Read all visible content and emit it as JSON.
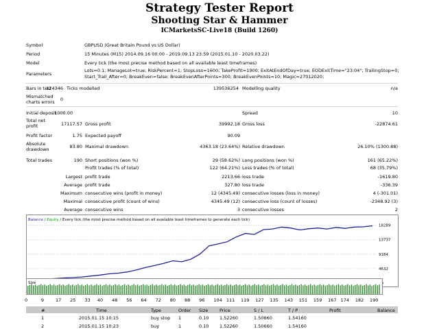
{
  "header": {
    "title": "Strategy Tester Report",
    "subtitle": "Shooting Star & Hammer",
    "server": "ICMarketsSC-Live18 (Build 1260)"
  },
  "info": {
    "symbol_label": "Symbol",
    "symbol": "GBPUSD (Great Britain Pound vs US Dollar)",
    "period_label": "Period",
    "period": "15 Minutes (M15) 2014.09.16 00:00 - 2019.09.13 23:59 (2015.01.10 - 2020.03.22)",
    "model_label": "Model",
    "model": "Every tick (the most precise method based on all available least timeframes)",
    "params_label": "Parameters",
    "params_line1": "Lots=0.1; ManageLot=true; RiskPercent=1; StopLoss=1600; TakeProfit=1900; ExitAtEndOfDay=true; EODExitTime=\"23:04\"; TrailingStop=0;",
    "params_line2": "Start_Trail_After=0; BreakEven=false; BreakEvenAfterPoints=300; BreakEvenPoints=10; Magic=27012020;"
  },
  "bars": {
    "bars_label": "Bars in test",
    "bars": "124346",
    "ticks_label": "Ticks modelled",
    "ticks": "139536254",
    "quality_label": "Modelling quality",
    "quality": "n/a",
    "mismatch_label1": "Mismatched",
    "mismatch_label2": "charts errors",
    "mismatch": "0"
  },
  "results": {
    "deposit_label": "Initial deposit",
    "deposit": "1000.00",
    "spread_label": "Spread",
    "spread": "10",
    "netprofit_label1": "Total net",
    "netprofit_label2": "profit",
    "netprofit": "17117.57",
    "grossprofit_label": "Gross profit",
    "grossprofit": "39992.18",
    "grossloss_label": "Gross loss",
    "grossloss": "-22874.61",
    "pf_label": "Profit factor",
    "pf": "1.75",
    "payoff_label": "Expected payoff",
    "payoff": "90.09",
    "absdd_label1": "Absolute",
    "absdd_label2": "drawdown",
    "absdd": "83.80",
    "maxdd_label": "Maximal drawdown",
    "maxdd": "4363.18 (23.64%)",
    "reldd_label": "Relative drawdown",
    "reldd": "26.10% (1300.88)",
    "trades_label": "Total trades",
    "trades": "190",
    "short_label": "Short positions (won %)",
    "short": "29 (58.62%)",
    "long_label": "Long positions (won %)",
    "long": "161 (65.22%)",
    "ptrades_label": "Profit trades (% of total)",
    "ptrades": "122 (64.21%)",
    "ltrades_label": "Loss trades (% of total)",
    "ltrades": "68 (35.79%)",
    "largest_label": "Largest",
    "lpt_label": "profit trade",
    "lpt": "2213.66",
    "llt_label": "loss trade",
    "llt": "-1619.80",
    "average_label": "Average",
    "apt_label": "profit trade",
    "apt": "327.80",
    "alt_label": "loss trade",
    "alt": "-336.39",
    "maximum_label": "Maximum",
    "mcw_label": "consecutive wins (profit in money)",
    "mcw": "12 (4345.49)",
    "mcl_label": "consecutive losses (loss in money)",
    "mcl": "4 (-301.01)",
    "maximal_label": "Maximal",
    "mcp_label": "consecutive profit (count of wins)",
    "mcp": "4345.49 (12)",
    "mcll_label": "consecutive loss (count of losses)",
    "mcll": "-2348.92 (3)",
    "average2_label": "Average",
    "acw_label": "consecutive wins",
    "acw": "3",
    "acl_label": "consecutive losses",
    "acl": "2"
  },
  "chart": {
    "legend_balance": "Balance",
    "legend_sep": " / ",
    "legend_equity": "Equity",
    "legend_rest": " / Every tick (the most precise method based on all available least timeframes to generate each tick)",
    "size_label": "Size",
    "balance_color": "#1f1f9c",
    "volume_color": "#2e8b2e"
  },
  "chart_data": {
    "type": "line",
    "title": "",
    "ylabel": "",
    "xlabel": "",
    "y_ticks": [
      "18289",
      "13737",
      "9184",
      "4632",
      "79"
    ],
    "x_ticks": [
      "0",
      "9",
      "17",
      "25",
      "33",
      "40",
      "48",
      "56",
      "64",
      "72",
      "80",
      "88",
      "96",
      "104",
      "111",
      "119",
      "127",
      "135",
      "143",
      "151",
      "159",
      "167",
      "174",
      "182",
      "190"
    ],
    "ylim": [
      79,
      19500
    ],
    "xlim": [
      0,
      190
    ],
    "series": [
      {
        "x": [
          0,
          5,
          10,
          15,
          20,
          25,
          30,
          35,
          40,
          45,
          50,
          55,
          60,
          65,
          70,
          75,
          80,
          85,
          90,
          95,
          100,
          105,
          110,
          115,
          120,
          125,
          130,
          135,
          140,
          145,
          150,
          155,
          160,
          165,
          170,
          175,
          180,
          185,
          190
        ],
        "y": [
          1000,
          1200,
          1300,
          1500,
          1700,
          1800,
          2000,
          2300,
          2600,
          3000,
          3200,
          3600,
          4200,
          5000,
          5600,
          6300,
          7100,
          6800,
          7600,
          9200,
          11800,
          12400,
          13100,
          14600,
          15700,
          15400,
          16900,
          17100,
          17700,
          17400,
          16800,
          17200,
          17400,
          17100,
          17600,
          17300,
          17700,
          17800,
          18100
        ]
      }
    ]
  },
  "trades_table": {
    "headers": [
      "#",
      "Time",
      "Type",
      "Order",
      "Size",
      "Price",
      "S / L",
      "T / P",
      "Profit",
      "Balance"
    ],
    "rows": [
      [
        "1",
        "2015.01.15 10:15",
        "buy stop",
        "1",
        "0.10",
        "1.52260",
        "1.50660",
        "1.54160",
        "",
        ""
      ],
      [
        "2",
        "2015.01.15 10:23",
        "buy",
        "1",
        "0.10",
        "1.52260",
        "1.50660",
        "1.54160",
        "",
        ""
      ]
    ]
  }
}
